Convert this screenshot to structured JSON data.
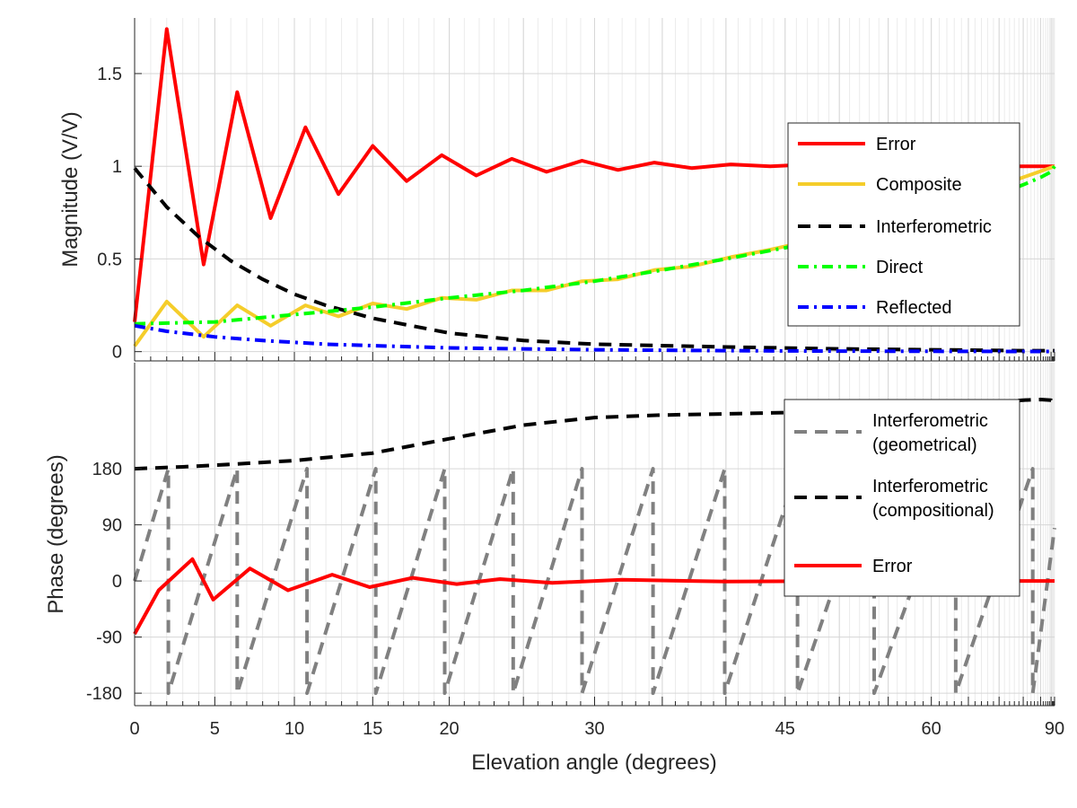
{
  "chart_data": [
    {
      "type": "line",
      "x_scale": "sin-elevation (x axis linear in sine of elevation angle)",
      "xlim": [
        0,
        90
      ],
      "ylim": [
        -0.05,
        1.8
      ],
      "ylabel": "Magnitude (V/V)",
      "yticks": [
        0,
        0.5,
        1,
        1.5
      ],
      "ytick_labels": [
        "0",
        "0.5",
        "1",
        "1.5"
      ],
      "grid": true,
      "legend_position": "right",
      "series": [
        {
          "name": "Error",
          "color": "#ff0000",
          "style": "solid",
          "x": [
            0,
            2,
            4.3,
            6.4,
            8.5,
            10.7,
            12.8,
            15,
            17.2,
            19.5,
            21.8,
            24.2,
            26.6,
            29.1,
            31.7,
            34.4,
            37.3,
            40.4,
            43.7,
            47.4,
            51.5,
            56.6,
            63.8,
            90
          ],
          "y": [
            0.16,
            1.74,
            0.47,
            1.4,
            0.72,
            1.21,
            0.85,
            1.11,
            0.92,
            1.06,
            0.95,
            1.04,
            0.97,
            1.03,
            0.98,
            1.02,
            0.99,
            1.01,
            1.0,
            1.01,
            1.0,
            1.0,
            1.0,
            1.0
          ]
        },
        {
          "name": "Composite",
          "color": "#f5cd2a",
          "style": "solid",
          "x": [
            0,
            2,
            4.3,
            6.4,
            8.5,
            10.7,
            12.8,
            15,
            17.2,
            19.5,
            21.8,
            24.2,
            26.6,
            29.1,
            31.7,
            34.4,
            37.3,
            40.4,
            43.7,
            47.4,
            51.5,
            56.6,
            63.8,
            90
          ],
          "y": [
            0.03,
            0.27,
            0.08,
            0.25,
            0.14,
            0.25,
            0.19,
            0.26,
            0.23,
            0.29,
            0.28,
            0.33,
            0.33,
            0.38,
            0.39,
            0.44,
            0.46,
            0.51,
            0.55,
            0.6,
            0.66,
            0.73,
            0.82,
            1.0
          ]
        },
        {
          "name": "Interferometric",
          "color": "#000000",
          "style": "dashed",
          "x": [
            0,
            2,
            4,
            6,
            8,
            10,
            12,
            15,
            20,
            25,
            30,
            40,
            50,
            60,
            75,
            90
          ],
          "y": [
            0.99,
            0.78,
            0.62,
            0.49,
            0.39,
            0.31,
            0.25,
            0.18,
            0.1,
            0.06,
            0.04,
            0.025,
            0.015,
            0.01,
            0.005,
            0.005
          ]
        },
        {
          "name": "Direct",
          "color": "#00ff00",
          "style": "dash-dot",
          "x": [
            0,
            5,
            10,
            15,
            20,
            25,
            30,
            35,
            40,
            45,
            50,
            55,
            60,
            65,
            70,
            75,
            80,
            85,
            90
          ],
          "y": [
            0.15,
            0.16,
            0.2,
            0.24,
            0.29,
            0.33,
            0.38,
            0.44,
            0.5,
            0.56,
            0.62,
            0.68,
            0.74,
            0.8,
            0.85,
            0.9,
            0.94,
            0.97,
            1.0
          ]
        },
        {
          "name": "Reflected",
          "color": "#0000ff",
          "style": "dash-dot",
          "x": [
            0,
            2,
            5,
            8,
            12,
            16,
            20,
            25,
            30,
            40,
            50,
            60,
            75,
            90
          ],
          "y": [
            0.14,
            0.11,
            0.08,
            0.06,
            0.04,
            0.03,
            0.02,
            0.015,
            0.01,
            0.005,
            0.003,
            0.002,
            0.001,
            0.001
          ]
        }
      ]
    },
    {
      "type": "line",
      "x_scale": "sin-elevation (x axis linear in sine of elevation angle)",
      "xlim": [
        0,
        90
      ],
      "ylim": [
        -200,
        350
      ],
      "xlabel": "Elevation angle (degrees)",
      "ylabel": "Phase (degrees)",
      "xticks": [
        0,
        5,
        10,
        15,
        20,
        30,
        45,
        60,
        90
      ],
      "xtick_labels": [
        "0",
        "5",
        "10",
        "15",
        "20",
        "30",
        "45",
        "60",
        "90"
      ],
      "yticks": [
        -180,
        -90,
        0,
        90,
        180
      ],
      "ytick_labels": [
        "-180",
        "-90",
        "0",
        "90",
        "180"
      ],
      "grid": true,
      "legend_position": "right",
      "series": [
        {
          "name": "Interferometric\n(geometrical)",
          "color": "#808080",
          "style": "dashed",
          "x": [
            0,
            2.1,
            2.1,
            6.4,
            6.4,
            10.8,
            10.8,
            15.2,
            15.2,
            19.7,
            19.7,
            24.3,
            24.3,
            29.1,
            29.1,
            34.3,
            34.3,
            39.9,
            39.9,
            46.1,
            46.1,
            53.5,
            53.5,
            63.2,
            63.2,
            77.5,
            77.5,
            90
          ],
          "y": [
            0,
            180,
            -180,
            180,
            -180,
            180,
            -180,
            180,
            -180,
            180,
            -180,
            180,
            -180,
            180,
            -180,
            180,
            -180,
            180,
            -180,
            180,
            -180,
            180,
            -180,
            180,
            -180,
            180,
            -180,
            85
          ]
        },
        {
          "name": "Interferometric\n(compositional)",
          "color": "#000000",
          "style": "dashed",
          "x": [
            0,
            3,
            6,
            10,
            15,
            20,
            25,
            30,
            35,
            40,
            45,
            50,
            55,
            60,
            65,
            70,
            75,
            80,
            85,
            90
          ],
          "y": [
            180,
            183,
            187,
            193,
            205,
            228,
            250,
            262,
            266,
            268,
            270,
            272,
            275,
            279,
            283,
            287,
            290,
            291,
            290,
            280
          ]
        },
        {
          "name": "Error",
          "color": "#ff0000",
          "style": "solid",
          "x": [
            0,
            1.5,
            3.6,
            4.9,
            7.2,
            9.6,
            12.4,
            14.8,
            17.6,
            20.5,
            23.4,
            27,
            32,
            40,
            50,
            65,
            90
          ],
          "y": [
            -85,
            -15,
            35,
            -30,
            20,
            -15,
            10,
            -10,
            5,
            -5,
            3,
            -3,
            2,
            -1,
            0,
            0,
            0
          ]
        }
      ]
    }
  ]
}
